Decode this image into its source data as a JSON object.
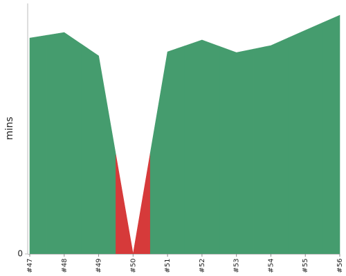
{
  "chart_data": {
    "type": "area",
    "y_label": "mins",
    "categories": [
      "#47",
      "#48",
      "#49",
      "#50",
      "#51",
      "#52",
      "#53",
      "#54",
      "#55",
      "#56"
    ],
    "values": [
      86.2,
      88.4,
      79.1,
      0,
      80.7,
      85.4,
      80.4,
      83.2,
      89.3,
      95.3
    ],
    "colors": [
      "#459c6e",
      "#459c6e",
      "#459c6e",
      "#d63a3a",
      "#459c6e",
      "#459c6e",
      "#459c6e",
      "#459c6e",
      "#459c6e",
      "#459c6e"
    ],
    "ylim": [
      0,
      100
    ],
    "yticks": [
      0
    ],
    "grid": false
  }
}
